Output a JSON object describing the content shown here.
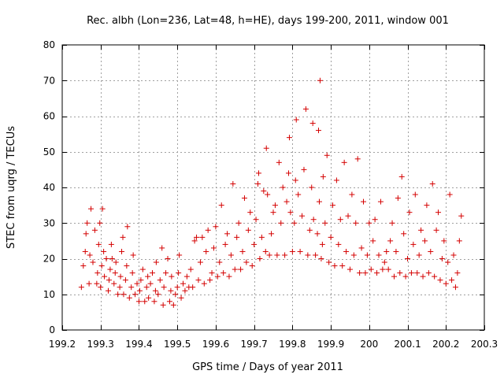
{
  "chart_data": {
    "type": "scatter",
    "title": "Rec. albh (Lon=236, Lat=48, h=HE), days 199-200, 2011, window 001",
    "xlabel": "GPS time / Days of year 2011",
    "ylabel": "STEC from uqrg / TECUs",
    "xlim": [
      199.2,
      200.3
    ],
    "ylim": [
      0,
      80
    ],
    "xticks": [
      199.2,
      199.3,
      199.4,
      199.5,
      199.6,
      199.7,
      199.8,
      199.9,
      200,
      200.1,
      200.2,
      200.3
    ],
    "xtick_labels": [
      "199.2",
      "199.3",
      "199.4",
      "199.5",
      "199.6",
      "199.7",
      "199.8",
      "199.9",
      "200",
      "200.1",
      "200.2",
      "200.3"
    ],
    "yticks": [
      0,
      10,
      20,
      30,
      40,
      50,
      60,
      70,
      80
    ],
    "ytick_labels": [
      "0",
      "10",
      "20",
      "30",
      "40",
      "50",
      "60",
      "70",
      "80"
    ],
    "grid": true,
    "marker": "+",
    "color": "#d40000",
    "points": [
      [
        199.25,
        12
      ],
      [
        199.255,
        18
      ],
      [
        199.26,
        22
      ],
      [
        199.262,
        27
      ],
      [
        199.265,
        30
      ],
      [
        199.27,
        13
      ],
      [
        199.272,
        21
      ],
      [
        199.275,
        34
      ],
      [
        199.28,
        19
      ],
      [
        199.285,
        28
      ],
      [
        199.29,
        13
      ],
      [
        199.292,
        16
      ],
      [
        199.295,
        24
      ],
      [
        199.298,
        30
      ],
      [
        199.3,
        12
      ],
      [
        199.303,
        18
      ],
      [
        199.305,
        34
      ],
      [
        199.308,
        22
      ],
      [
        199.31,
        15
      ],
      [
        199.315,
        20
      ],
      [
        199.32,
        11
      ],
      [
        199.322,
        14
      ],
      [
        199.325,
        17
      ],
      [
        199.328,
        24
      ],
      [
        199.33,
        20
      ],
      [
        199.335,
        13
      ],
      [
        199.338,
        16
      ],
      [
        199.34,
        19
      ],
      [
        199.345,
        10
      ],
      [
        199.35,
        12
      ],
      [
        199.352,
        15
      ],
      [
        199.355,
        22
      ],
      [
        199.358,
        26
      ],
      [
        199.36,
        10
      ],
      [
        199.365,
        14
      ],
      [
        199.368,
        18
      ],
      [
        199.37,
        29
      ],
      [
        199.375,
        9
      ],
      [
        199.38,
        12
      ],
      [
        199.383,
        16
      ],
      [
        199.385,
        21
      ],
      [
        199.39,
        10
      ],
      [
        199.395,
        13
      ],
      [
        199.4,
        8
      ],
      [
        199.402,
        11
      ],
      [
        199.405,
        14
      ],
      [
        199.41,
        17
      ],
      [
        199.415,
        8
      ],
      [
        199.42,
        12
      ],
      [
        199.423,
        15
      ],
      [
        199.425,
        9
      ],
      [
        199.43,
        13
      ],
      [
        199.435,
        16
      ],
      [
        199.44,
        8
      ],
      [
        199.443,
        11
      ],
      [
        199.445,
        19
      ],
      [
        199.45,
        10
      ],
      [
        199.455,
        14
      ],
      [
        199.46,
        23
      ],
      [
        199.463,
        7
      ],
      [
        199.465,
        12
      ],
      [
        199.47,
        16
      ],
      [
        199.475,
        20
      ],
      [
        199.48,
        8
      ],
      [
        199.483,
        11
      ],
      [
        199.485,
        15
      ],
      [
        199.49,
        7
      ],
      [
        199.495,
        10
      ],
      [
        199.5,
        12
      ],
      [
        199.503,
        16
      ],
      [
        199.505,
        21
      ],
      [
        199.51,
        9
      ],
      [
        199.515,
        13
      ],
      [
        199.52,
        11
      ],
      [
        199.525,
        15
      ],
      [
        199.53,
        12
      ],
      [
        199.535,
        17
      ],
      [
        199.54,
        12
      ],
      [
        199.545,
        25
      ],
      [
        199.55,
        26
      ],
      [
        199.555,
        14
      ],
      [
        199.56,
        19
      ],
      [
        199.565,
        26
      ],
      [
        199.57,
        13
      ],
      [
        199.575,
        22
      ],
      [
        199.58,
        28
      ],
      [
        199.585,
        14
      ],
      [
        199.59,
        16
      ],
      [
        199.595,
        23
      ],
      [
        199.6,
        29
      ],
      [
        199.605,
        15
      ],
      [
        199.61,
        19
      ],
      [
        199.615,
        35
      ],
      [
        199.62,
        16
      ],
      [
        199.625,
        24
      ],
      [
        199.63,
        27
      ],
      [
        199.635,
        15
      ],
      [
        199.64,
        21
      ],
      [
        199.645,
        41
      ],
      [
        199.65,
        17
      ],
      [
        199.655,
        26
      ],
      [
        199.66,
        30
      ],
      [
        199.665,
        17
      ],
      [
        199.67,
        22
      ],
      [
        199.675,
        37
      ],
      [
        199.68,
        19
      ],
      [
        199.685,
        28
      ],
      [
        199.69,
        33
      ],
      [
        199.695,
        18
      ],
      [
        199.7,
        24
      ],
      [
        199.705,
        31
      ],
      [
        199.71,
        41
      ],
      [
        199.712,
        44
      ],
      [
        199.715,
        20
      ],
      [
        199.72,
        26
      ],
      [
        199.725,
        39
      ],
      [
        199.73,
        22
      ],
      [
        199.732,
        51
      ],
      [
        199.735,
        38
      ],
      [
        199.74,
        21
      ],
      [
        199.745,
        27
      ],
      [
        199.75,
        33
      ],
      [
        199.755,
        35
      ],
      [
        199.76,
        21
      ],
      [
        199.765,
        47
      ],
      [
        199.77,
        30
      ],
      [
        199.775,
        40
      ],
      [
        199.78,
        21
      ],
      [
        199.785,
        36
      ],
      [
        199.79,
        44
      ],
      [
        199.792,
        54
      ],
      [
        199.795,
        33
      ],
      [
        199.8,
        22
      ],
      [
        199.805,
        30
      ],
      [
        199.808,
        42
      ],
      [
        199.81,
        59
      ],
      [
        199.815,
        38
      ],
      [
        199.82,
        22
      ],
      [
        199.825,
        32
      ],
      [
        199.83,
        45
      ],
      [
        199.835,
        62
      ],
      [
        199.84,
        21
      ],
      [
        199.845,
        28
      ],
      [
        199.85,
        40
      ],
      [
        199.853,
        58
      ],
      [
        199.855,
        31
      ],
      [
        199.86,
        21
      ],
      [
        199.865,
        27
      ],
      [
        199.868,
        56
      ],
      [
        199.87,
        36
      ],
      [
        199.872,
        70
      ],
      [
        199.875,
        20
      ],
      [
        199.878,
        24
      ],
      [
        199.88,
        43
      ],
      [
        199.885,
        30
      ],
      [
        199.89,
        49
      ],
      [
        199.895,
        19
      ],
      [
        199.9,
        26
      ],
      [
        199.905,
        35
      ],
      [
        199.91,
        18
      ],
      [
        199.915,
        42
      ],
      [
        199.92,
        24
      ],
      [
        199.925,
        31
      ],
      [
        199.93,
        18
      ],
      [
        199.935,
        47
      ],
      [
        199.94,
        22
      ],
      [
        199.945,
        32
      ],
      [
        199.95,
        17
      ],
      [
        199.955,
        38
      ],
      [
        199.96,
        21
      ],
      [
        199.965,
        30
      ],
      [
        199.97,
        48
      ],
      [
        199.975,
        16
      ],
      [
        199.98,
        23
      ],
      [
        199.985,
        36
      ],
      [
        199.99,
        16
      ],
      [
        199.995,
        21
      ],
      [
        200.0,
        30
      ],
      [
        200.005,
        17
      ],
      [
        200.01,
        25
      ],
      [
        200.015,
        31
      ],
      [
        200.02,
        16
      ],
      [
        200.025,
        21
      ],
      [
        200.03,
        36
      ],
      [
        200.035,
        17
      ],
      [
        200.04,
        19
      ],
      [
        200.045,
        22
      ],
      [
        200.05,
        17
      ],
      [
        200.055,
        25
      ],
      [
        200.06,
        30
      ],
      [
        200.065,
        15
      ],
      [
        200.07,
        22
      ],
      [
        200.075,
        37
      ],
      [
        200.08,
        16
      ],
      [
        200.085,
        43
      ],
      [
        200.09,
        27
      ],
      [
        200.095,
        15
      ],
      [
        200.1,
        20
      ],
      [
        200.105,
        33
      ],
      [
        200.11,
        16
      ],
      [
        200.115,
        24
      ],
      [
        200.12,
        38
      ],
      [
        200.125,
        16
      ],
      [
        200.13,
        21
      ],
      [
        200.135,
        28
      ],
      [
        200.14,
        15
      ],
      [
        200.145,
        25
      ],
      [
        200.15,
        35
      ],
      [
        200.155,
        16
      ],
      [
        200.16,
        22
      ],
      [
        200.165,
        41
      ],
      [
        200.17,
        15
      ],
      [
        200.175,
        28
      ],
      [
        200.18,
        33
      ],
      [
        200.185,
        14
      ],
      [
        200.19,
        20
      ],
      [
        200.195,
        25
      ],
      [
        200.2,
        13
      ],
      [
        200.205,
        19
      ],
      [
        200.21,
        38
      ],
      [
        200.215,
        14
      ],
      [
        200.22,
        21
      ],
      [
        200.225,
        12
      ],
      [
        200.23,
        16
      ],
      [
        200.235,
        25
      ],
      [
        200.24,
        32
      ]
    ]
  }
}
